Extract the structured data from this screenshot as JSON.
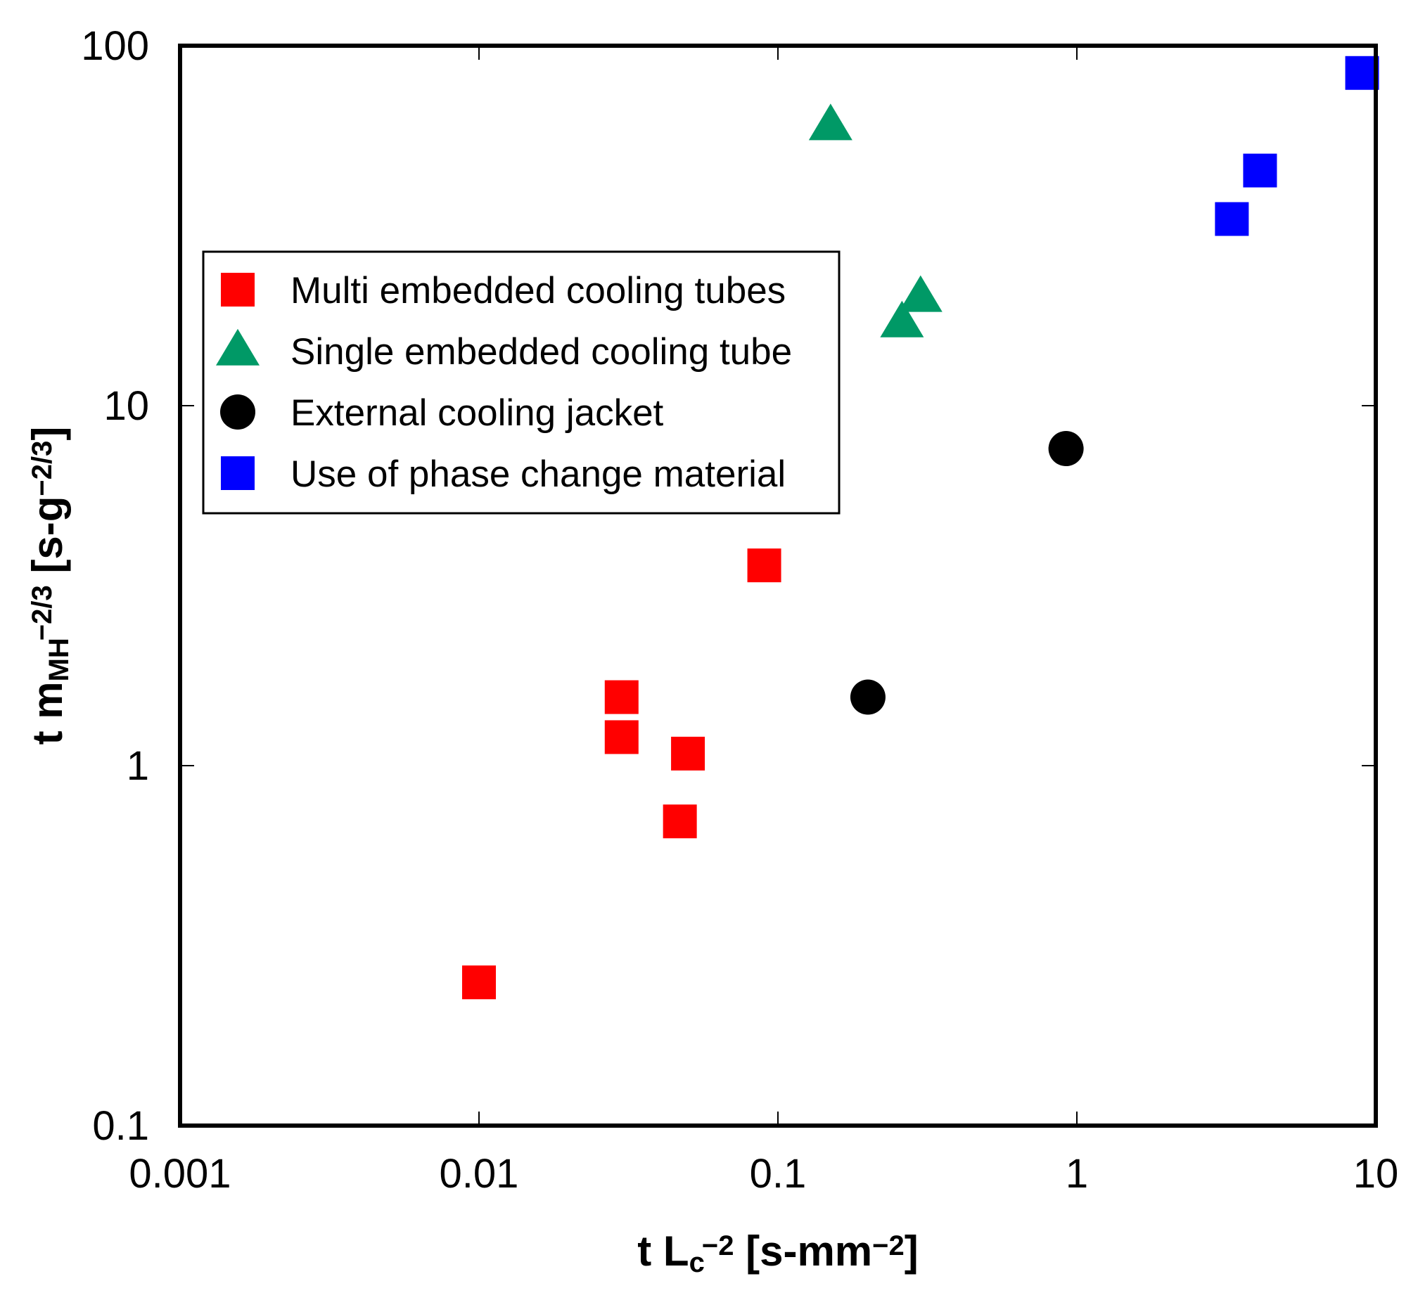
{
  "chart_data": {
    "type": "scatter",
    "title": "",
    "x_scale": "log",
    "y_scale": "log",
    "xlim": [
      0.001,
      10
    ],
    "ylim": [
      0.1,
      100
    ],
    "x_ticks": [
      0.001,
      0.01,
      0.1,
      1,
      10
    ],
    "x_tick_labels": [
      "0.001",
      "0.01",
      "0.1",
      "1",
      "10"
    ],
    "y_ticks": [
      0.1,
      1,
      10,
      100
    ],
    "y_tick_labels": [
      "0.1",
      "1",
      "10",
      "100"
    ],
    "xlabel": {
      "parts": [
        {
          "text": "t L",
          "style": "normal"
        },
        {
          "text": "c",
          "style": "sub"
        },
        {
          "text": "−2",
          "style": "sup"
        },
        {
          "text": " [s-mm",
          "style": "normal"
        },
        {
          "text": "−2",
          "style": "sup"
        },
        {
          "text": "]",
          "style": "normal"
        }
      ]
    },
    "ylabel": {
      "parts": [
        {
          "text": "t m",
          "style": "normal"
        },
        {
          "text": "MH",
          "style": "sub"
        },
        {
          "text": "−2/3",
          "style": "sup"
        },
        {
          "text": " [s-g",
          "style": "normal"
        },
        {
          "text": "−2/3",
          "style": "sup"
        },
        {
          "text": "]",
          "style": "normal"
        }
      ]
    },
    "grid": false,
    "legend_position": "upper-left",
    "series": [
      {
        "name": "Multi embedded cooling tubes",
        "marker": "square",
        "color": "#ff0000",
        "points": [
          {
            "x": 0.01,
            "y": 0.25
          },
          {
            "x": 0.03,
            "y": 1.55
          },
          {
            "x": 0.03,
            "y": 1.2
          },
          {
            "x": 0.05,
            "y": 1.08
          },
          {
            "x": 0.047,
            "y": 0.7
          },
          {
            "x": 0.09,
            "y": 3.6
          }
        ]
      },
      {
        "name": "Single embedded cooling tube",
        "marker": "triangle",
        "color": "#009966",
        "points": [
          {
            "x": 0.15,
            "y": 60
          },
          {
            "x": 0.3,
            "y": 20
          },
          {
            "x": 0.26,
            "y": 17
          }
        ]
      },
      {
        "name": "External cooling jacket",
        "marker": "circle",
        "color": "#000000",
        "points": [
          {
            "x": 0.2,
            "y": 1.55
          },
          {
            "x": 0.92,
            "y": 7.6
          }
        ]
      },
      {
        "name": "Use of phase change material",
        "marker": "square",
        "color": "#0000ff",
        "points": [
          {
            "x": 3.3,
            "y": 33
          },
          {
            "x": 4.1,
            "y": 45
          },
          {
            "x": 9.0,
            "y": 84
          }
        ]
      }
    ]
  }
}
